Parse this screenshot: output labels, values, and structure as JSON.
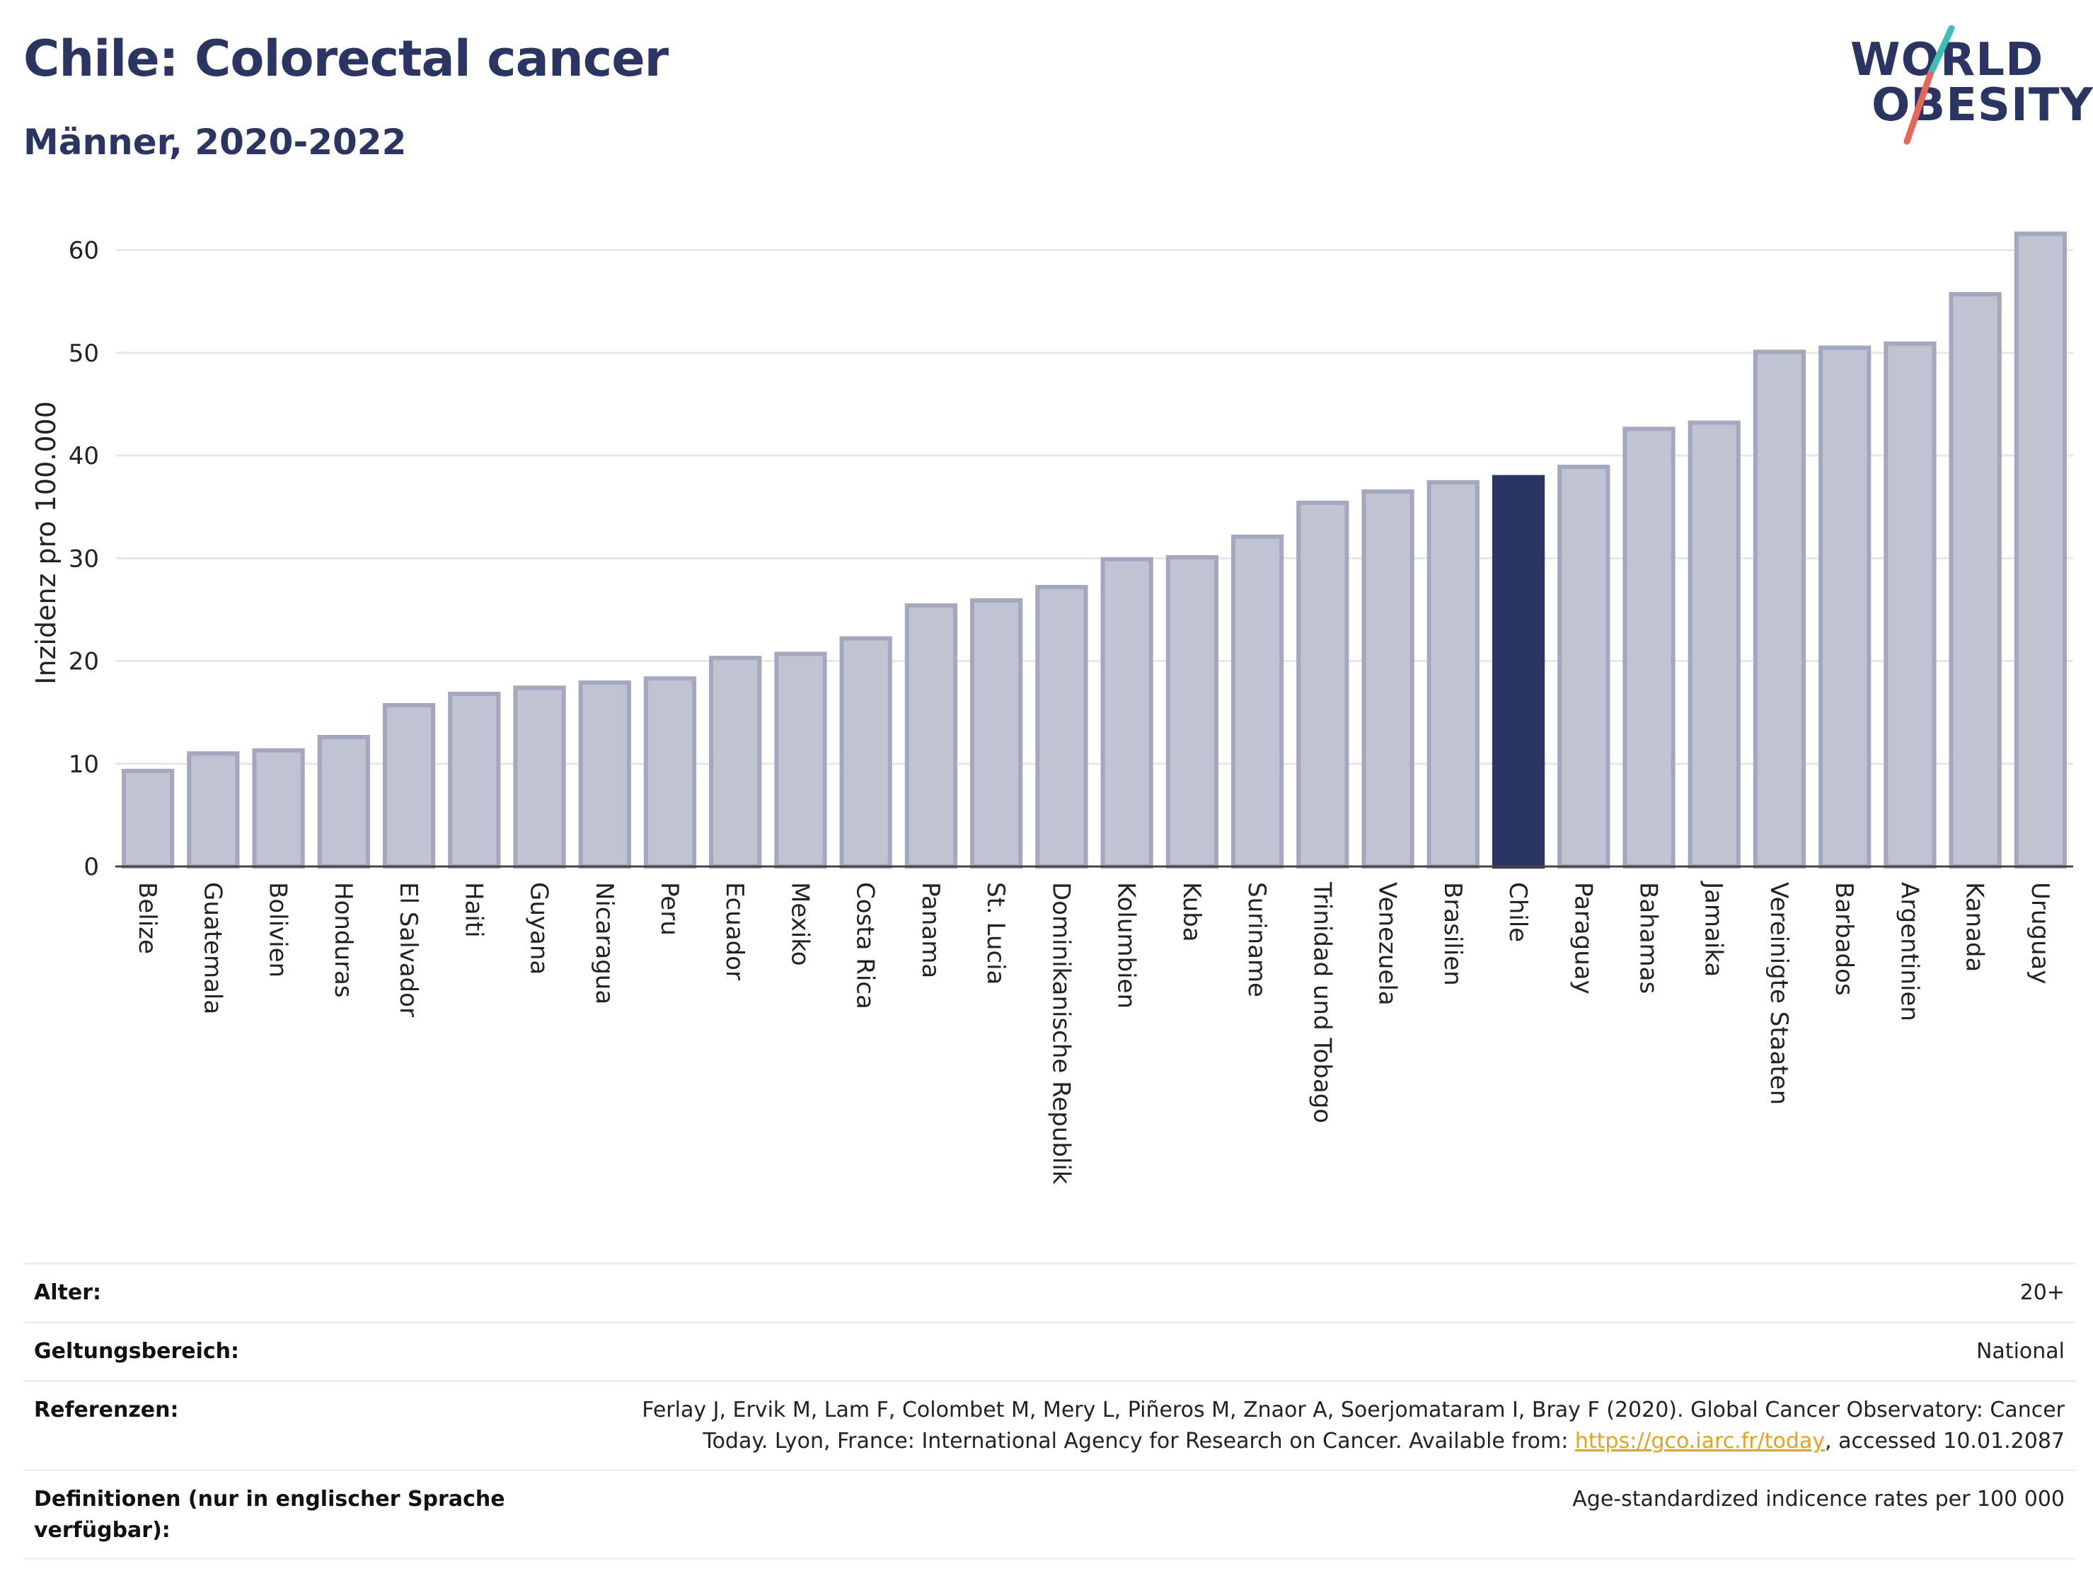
{
  "header": {
    "title": "Chile: Colorectal cancer",
    "subtitle": "Männer, 2020-2022"
  },
  "logo": {
    "line1": "WORLD",
    "line2": "OBESITY",
    "accent_teal": "#3bbfb4",
    "accent_red": "#e8675a"
  },
  "chart_data": {
    "type": "bar",
    "ylabel": "Inzidenz pro 100.000",
    "ylim": [
      0,
      63
    ],
    "yticks": [
      0,
      10,
      20,
      30,
      40,
      50,
      60
    ],
    "grid": true,
    "highlight": "Chile",
    "bar_color": "#bfc3d2",
    "bar_edge_color": "#a3a8bf",
    "highlight_color": "#2a3563",
    "categories": [
      "Belize",
      "Guatemala",
      "Bolivien",
      "Honduras",
      "El Salvador",
      "Haiti",
      "Guyana",
      "Nicaragua",
      "Peru",
      "Ecuador",
      "Mexiko",
      "Costa Rica",
      "Panama",
      "St. Lucia",
      "Dominikanische Republik",
      "Kolumbien",
      "Kuba",
      "Suriname",
      "Trinidad und Tobago",
      "Venezuela",
      "Brasilien",
      "Chile",
      "Paraguay",
      "Bahamas",
      "Jamaika",
      "Vereinigte Staaten",
      "Barbados",
      "Argentinien",
      "Kanada",
      "Uruguay"
    ],
    "values": [
      9.3,
      11.0,
      11.3,
      12.6,
      15.7,
      16.8,
      17.4,
      17.9,
      18.3,
      20.3,
      20.7,
      22.2,
      25.4,
      25.9,
      27.2,
      29.9,
      30.1,
      32.1,
      35.4,
      36.5,
      37.4,
      37.9,
      38.9,
      42.6,
      43.2,
      50.1,
      50.5,
      50.9,
      55.7,
      61.6
    ]
  },
  "info": {
    "age_label": "Alter:",
    "age_value": "20+",
    "scope_label": "Geltungsbereich:",
    "scope_value": "National",
    "ref_label": "Referenzen:",
    "ref_text1": "Ferlay J, Ervik M, Lam F, Colombet M, Mery L, Piñeros M, Znaor A, Soerjomataram I, Bray F (2020). Global Cancer Observatory: Cancer",
    "ref_text2": "Today. Lyon, France: International Agency for Research on Cancer. Available from: ",
    "ref_link": "https://gco.iarc.fr/today",
    "ref_text3": ", accessed 10.01.2087",
    "def_label": "Definitionen (nur in englischer Sprache verfügbar):",
    "def_value": "Age-standardized indicence rates per 100 000"
  }
}
